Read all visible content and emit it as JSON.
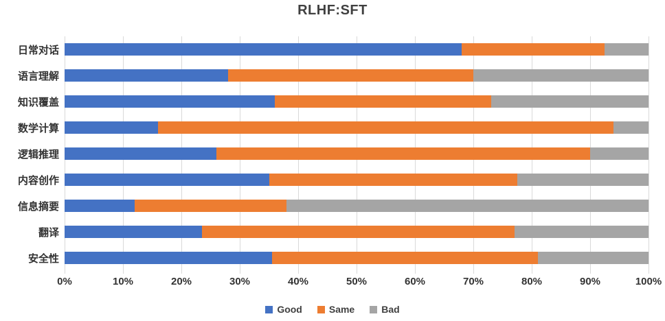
{
  "title": "RLHF:SFT",
  "chart_data": {
    "type": "bar",
    "orientation": "horizontal",
    "stacked": true,
    "title": "RLHF:SFT",
    "categories": [
      "日常对话",
      "语言理解",
      "知识覆盖",
      "数学计算",
      "逻辑推理",
      "内容创作",
      "信息摘要",
      "翻译",
      "安全性"
    ],
    "series": [
      {
        "name": "Good",
        "color": "#4472C4",
        "values": [
          68,
          28,
          36,
          16,
          26,
          35,
          12,
          23.5,
          35.5
        ]
      },
      {
        "name": "Same",
        "color": "#ED7D31",
        "values": [
          24.5,
          42,
          37,
          78,
          64,
          42.5,
          26,
          53.5,
          45.5
        ]
      },
      {
        "name": "Bad",
        "color": "#A5A5A5",
        "values": [
          7.5,
          30,
          27,
          6,
          10,
          22.5,
          62,
          23,
          19
        ]
      }
    ],
    "x_ticks": [
      "0%",
      "10%",
      "20%",
      "30%",
      "40%",
      "50%",
      "60%",
      "70%",
      "80%",
      "90%",
      "100%"
    ],
    "xlim": [
      0,
      100
    ],
    "grid": true,
    "legend_position": "bottom"
  },
  "colors": {
    "gridline": "#D9D9D9",
    "axis_text": "#333333",
    "title_text": "#404040",
    "background": "#FFFFFF"
  }
}
